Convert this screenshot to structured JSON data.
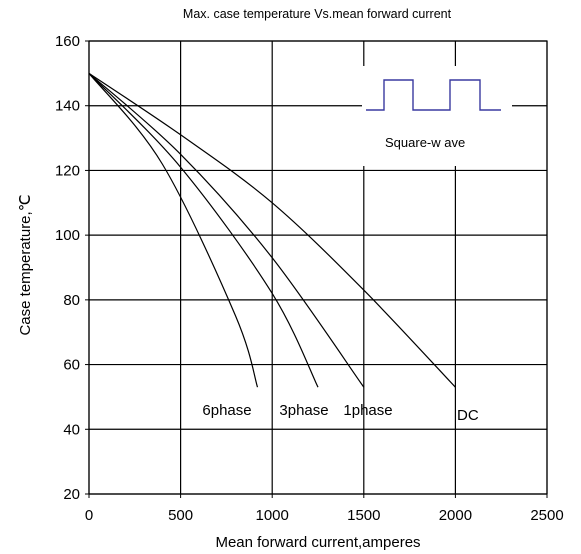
{
  "chart_data": {
    "type": "line",
    "title": "Max. case temperature Vs.mean forward current",
    "xlabel": "Mean forward current,amperes",
    "ylabel": "Case temperature,℃",
    "xlim": [
      0,
      2500
    ],
    "ylim": [
      20,
      160
    ],
    "xticks": [
      "0",
      "500",
      "1000",
      "1500",
      "2000",
      "2500"
    ],
    "yticks": [
      "20",
      "40",
      "60",
      "80",
      "100",
      "120",
      "140",
      "160"
    ],
    "grid": true,
    "inset": {
      "label": "Square-w ave"
    },
    "series": [
      {
        "name": "DC",
        "x": [
          0,
          500,
          1000,
          1500,
          2000
        ],
        "y": [
          150,
          131,
          110,
          83,
          53
        ]
      },
      {
        "name": "1phase",
        "x": [
          0,
          500,
          1000,
          1500
        ],
        "y": [
          150,
          125,
          93,
          53
        ]
      },
      {
        "name": "3phase",
        "x": [
          0,
          500,
          1000,
          1250
        ],
        "y": [
          150,
          121,
          82,
          53
        ]
      },
      {
        "name": "6phase",
        "x": [
          0,
          400,
          800,
          920
        ],
        "y": [
          150,
          122,
          75,
          53
        ]
      }
    ]
  }
}
